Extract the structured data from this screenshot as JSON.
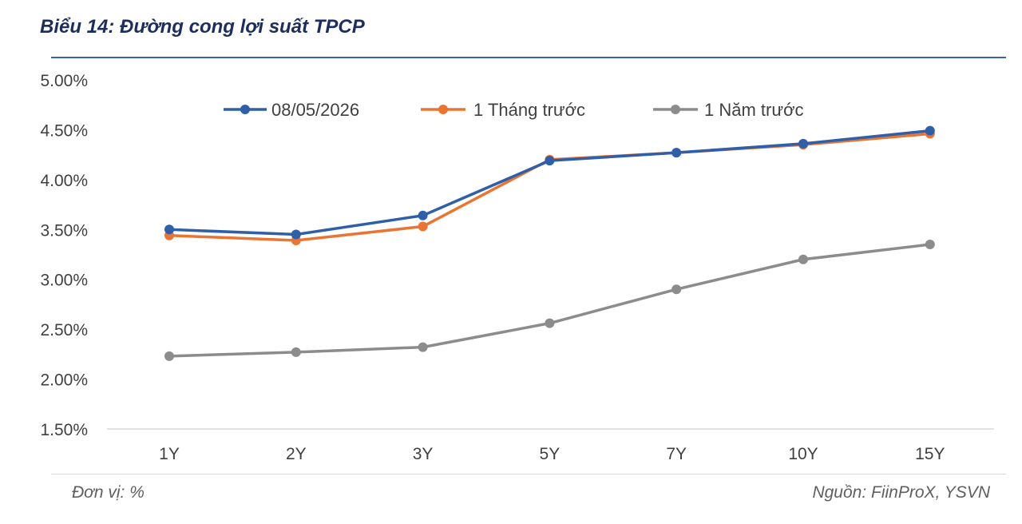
{
  "header": {
    "title": "Biểu 14: Đường cong lợi suất TPCP"
  },
  "footer": {
    "unit": "Đơn vị: %",
    "source": "Nguồn: FiinProX, YSVN"
  },
  "chart_data": {
    "type": "line",
    "title": "Biểu 14: Đường cong lợi suất TPCP",
    "xlabel": "",
    "ylabel": "",
    "categories": [
      "1Y",
      "2Y",
      "3Y",
      "5Y",
      "7Y",
      "10Y",
      "15Y"
    ],
    "ylim": [
      1.5,
      5.0
    ],
    "yticks": [
      5.0,
      4.5,
      4.0,
      3.5,
      3.0,
      2.5,
      2.0,
      1.5
    ],
    "ytick_labels": [
      "5.00%",
      "4.50%",
      "4.00%",
      "3.50%",
      "3.00%",
      "2.50%",
      "2.00%",
      "1.50%"
    ],
    "grid": false,
    "legend_position": "top",
    "series": [
      {
        "name": "08/05/2026",
        "color": "#2e5fa8",
        "values": [
          3.5,
          3.45,
          3.64,
          4.19,
          4.27,
          4.36,
          4.49
        ]
      },
      {
        "name": "1 Tháng trước",
        "color": "#ea7533",
        "values": [
          3.44,
          3.39,
          3.53,
          4.2,
          4.27,
          4.35,
          4.46
        ]
      },
      {
        "name": "1 Năm trước",
        "color": "#8c8c8c",
        "values": [
          2.23,
          2.27,
          2.32,
          2.56,
          2.9,
          3.2,
          3.35
        ]
      }
    ]
  }
}
